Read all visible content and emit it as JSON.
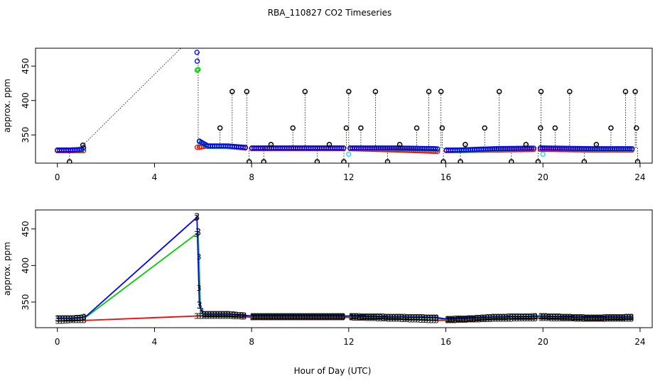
{
  "title": "RBA_110827  CO2 Timeseries",
  "xlabel": "Hour of Day (UTC)",
  "colors": {
    "black": "#000000",
    "red": "#ff0000",
    "green": "#00cc00",
    "blue": "#0000ff",
    "cyan": "#00e5ee"
  },
  "chart_data": [
    {
      "type": "scatter",
      "title": "",
      "xlabel": "",
      "ylabel": "approx. ppm",
      "xlim": [
        -0.9,
        24.5
      ],
      "ylim": [
        309,
        476
      ],
      "x_ticks": [
        "0",
        "4",
        "8",
        "12",
        "16",
        "20",
        "24"
      ],
      "y_ticks": [
        "350",
        "400",
        "450"
      ],
      "grid": false,
      "series": [
        {
          "name": "",
          "color": "black",
          "role": "outliers_high",
          "x": [
            1.05,
            6.7,
            7.2,
            7.8,
            8.8,
            9.7,
            10.2,
            11.2,
            11.9,
            12.0,
            12.5,
            13.1,
            14.1,
            14.8,
            15.3,
            15.8,
            15.85,
            16.8,
            17.6,
            18.2,
            19.3,
            19.9,
            19.92,
            20.5,
            21.1,
            22.2,
            22.8,
            23.4,
            23.8,
            23.85
          ],
          "y": [
            335,
            360,
            413,
            413,
            336,
            360,
            413,
            336,
            360,
            413,
            360,
            413,
            336,
            360,
            413,
            413,
            360,
            336,
            360,
            413,
            336,
            360,
            413,
            360,
            413,
            336,
            360,
            413,
            413,
            360
          ]
        },
        {
          "name": "",
          "color": "black",
          "role": "outliers_low",
          "x": [
            0.5,
            7.9,
            8.5,
            10.7,
            11.8,
            13.6,
            15.9,
            16.6,
            18.7,
            19.8,
            21.7,
            23.9
          ],
          "y": [
            311,
            311,
            311,
            311,
            311,
            311,
            311,
            311,
            311,
            311,
            311,
            311
          ]
        },
        {
          "name": "",
          "color": "red",
          "role": "main",
          "x": [
            0.0,
            0.5,
            1.0,
            5.85,
            6.2,
            7.0,
            7.7,
            8.0,
            10.0,
            12.0,
            14.0,
            15.6,
            16.0,
            16.5,
            18.0,
            20.0,
            22.0,
            23.7
          ],
          "y": [
            327,
            327,
            327,
            332,
            334,
            333,
            331,
            330,
            330,
            330,
            328,
            326,
            327,
            327,
            328,
            329,
            328,
            328
          ]
        },
        {
          "name": "",
          "color": "green",
          "role": "main",
          "x": [
            0.0,
            0.5,
            1.0,
            5.8,
            5.85,
            6.2,
            7.0,
            7.7,
            8.0,
            10.0,
            12.0,
            14.0,
            15.6,
            16.0,
            16.5,
            18.0,
            20.0,
            22.0,
            23.7
          ],
          "y": [
            328,
            328,
            328,
            445,
            340,
            333,
            333,
            332,
            331,
            331,
            331,
            330,
            329,
            328,
            327,
            329,
            331,
            329,
            329
          ]
        },
        {
          "name": "",
          "color": "blue",
          "role": "main",
          "x": [
            0.0,
            0.5,
            1.0,
            5.75,
            5.85,
            6.2,
            7.0,
            7.7,
            8.0,
            10.0,
            12.0,
            14.0,
            15.6,
            16.0,
            16.5,
            18.0,
            20.0,
            22.0,
            23.7
          ],
          "y": [
            328,
            328,
            329,
            470,
            341,
            334,
            334,
            332,
            331,
            331,
            331,
            331,
            330,
            328,
            328,
            330,
            331,
            330,
            330
          ]
        },
        {
          "name": "",
          "color": "cyan",
          "role": "sparse",
          "x": [
            12.0,
            20.0
          ],
          "y": [
            322,
            322
          ]
        }
      ]
    },
    {
      "type": "line",
      "title": "",
      "xlabel": "",
      "ylabel": "approx. ppm",
      "xlim": [
        -0.9,
        24.5
      ],
      "ylim": [
        315,
        476
      ],
      "x_ticks": [
        "0",
        "4",
        "8",
        "12",
        "16",
        "20",
        "24"
      ],
      "y_ticks": [
        "350",
        "400",
        "450"
      ],
      "grid": false,
      "point_marker": "3",
      "series": [
        {
          "name": "",
          "color": "red",
          "x": [
            0.0,
            0.5,
            1.0,
            1.2,
            5.8,
            6.0,
            7.0,
            7.7,
            8.0,
            10.0,
            12.0,
            14.0,
            15.6,
            16.0,
            17.0,
            18.0,
            20.0,
            22.0,
            23.7
          ],
          "y": [
            324,
            325,
            325,
            325,
            331,
            331,
            331,
            330,
            329,
            329,
            329,
            327,
            325,
            325,
            326,
            327,
            328,
            327,
            327
          ]
        },
        {
          "name": "",
          "color": "green",
          "x": [
            0.0,
            0.5,
            1.0,
            1.2,
            5.8,
            5.9,
            6.0,
            7.0,
            7.7,
            8.0,
            10.0,
            12.0,
            14.0,
            15.6,
            16.0,
            17.0,
            18.0,
            20.0,
            22.0,
            23.7
          ],
          "y": [
            327,
            327,
            328,
            330,
            445,
            335,
            333,
            333,
            332,
            330,
            330,
            330,
            329,
            328,
            326,
            327,
            329,
            330,
            328,
            329
          ]
        },
        {
          "name": "",
          "color": "blue",
          "x": [
            0.0,
            0.5,
            1.0,
            1.2,
            5.75,
            5.85,
            6.0,
            7.0,
            7.7,
            8.0,
            10.0,
            12.0,
            14.0,
            15.6,
            16.0,
            17.0,
            18.0,
            20.0,
            22.0,
            23.7
          ],
          "y": [
            328,
            328,
            329,
            331,
            466,
            345,
            334,
            334,
            332,
            331,
            331,
            331,
            330,
            329,
            327,
            328,
            330,
            331,
            329,
            330
          ]
        }
      ]
    }
  ]
}
